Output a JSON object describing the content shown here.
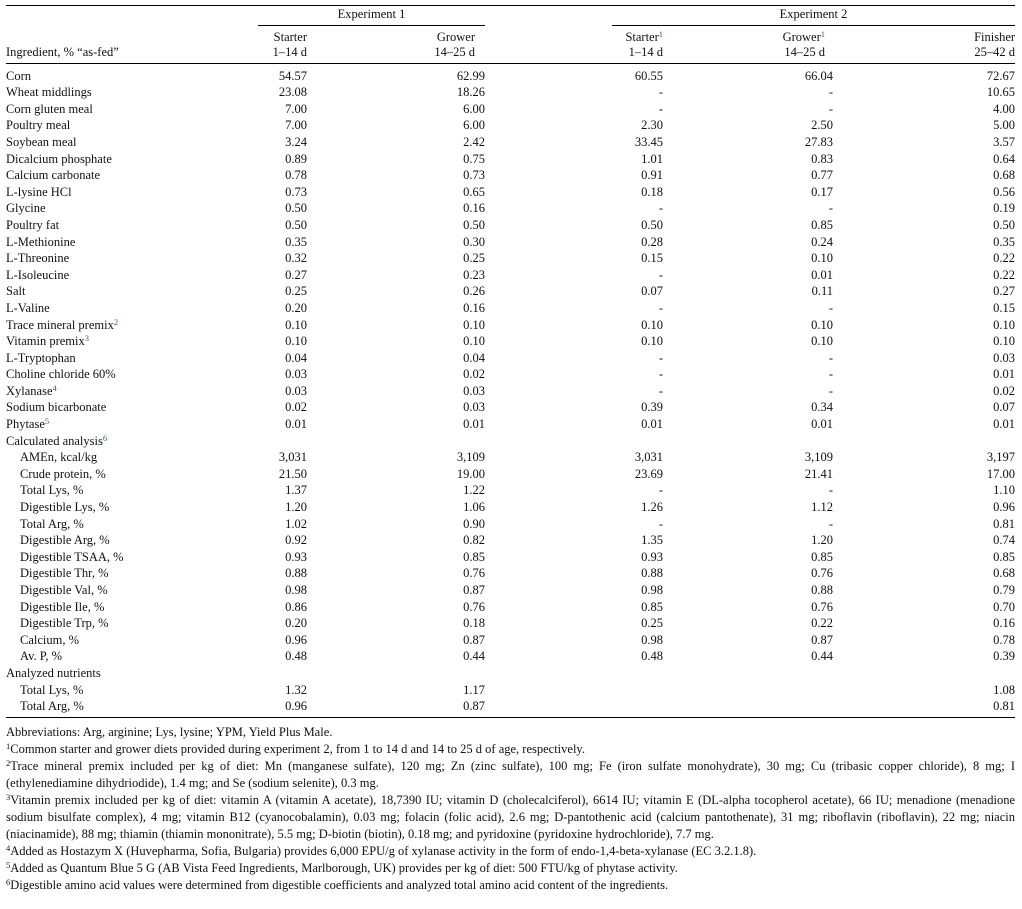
{
  "table": {
    "groups": [
      "Experiment 1",
      "Experiment 2"
    ],
    "header_label": "Ingredient, % “as-fed”",
    "columns": [
      {
        "name": "Starter",
        "period": "1–14 d"
      },
      {
        "name": "Grower",
        "period": "14–25 d"
      },
      {
        "name": "Starter",
        "note": "1",
        "period": "1–14 d"
      },
      {
        "name": "Grower",
        "note": "1",
        "period": "14–25 d"
      },
      {
        "name": "Finisher",
        "period": "25–42 d"
      }
    ],
    "rows": [
      {
        "label": "Corn",
        "values": [
          "54.57",
          "62.99",
          "60.55",
          "66.04",
          "72.67"
        ]
      },
      {
        "label": "Wheat middlings",
        "values": [
          "23.08",
          "18.26",
          "-",
          "-",
          "10.65"
        ]
      },
      {
        "label": "Corn gluten meal",
        "values": [
          "7.00",
          "6.00",
          "-",
          "-",
          "4.00"
        ]
      },
      {
        "label": "Poultry meal",
        "values": [
          "7.00",
          "6.00",
          "2.30",
          "2.50",
          "5.00"
        ]
      },
      {
        "label": "Soybean meal",
        "values": [
          "3.24",
          "2.42",
          "33.45",
          "27.83",
          "3.57"
        ]
      },
      {
        "label": "Dicalcium phosphate",
        "values": [
          "0.89",
          "0.75",
          "1.01",
          "0.83",
          "0.64"
        ]
      },
      {
        "label": "Calcium carbonate",
        "values": [
          "0.78",
          "0.73",
          "0.91",
          "0.77",
          "0.68"
        ]
      },
      {
        "label": "L-lysine HCl",
        "values": [
          "0.73",
          "0.65",
          "0.18",
          "0.17",
          "0.56"
        ]
      },
      {
        "label": "Glycine",
        "values": [
          "0.50",
          "0.16",
          "-",
          "-",
          "0.19"
        ]
      },
      {
        "label": "Poultry fat",
        "values": [
          "0.50",
          "0.50",
          "0.50",
          "0.85",
          "0.50"
        ]
      },
      {
        "label": "L-Methionine",
        "values": [
          "0.35",
          "0.30",
          "0.28",
          "0.24",
          "0.35"
        ]
      },
      {
        "label": "L-Threonine",
        "values": [
          "0.32",
          "0.25",
          "0.15",
          "0.10",
          "0.22"
        ]
      },
      {
        "label": "L-Isoleucine",
        "values": [
          "0.27",
          "0.23",
          "-",
          "0.01",
          "0.22"
        ]
      },
      {
        "label": "Salt",
        "values": [
          "0.25",
          "0.26",
          "0.07",
          "0.11",
          "0.27"
        ]
      },
      {
        "label": "L-Valine",
        "values": [
          "0.20",
          "0.16",
          "-",
          "-",
          "0.15"
        ]
      },
      {
        "label": "Trace mineral premix",
        "note": "2",
        "values": [
          "0.10",
          "0.10",
          "0.10",
          "0.10",
          "0.10"
        ]
      },
      {
        "label": "Vitamin premix",
        "note": "3",
        "values": [
          "0.10",
          "0.10",
          "0.10",
          "0.10",
          "0.10"
        ]
      },
      {
        "label": "L-Tryptophan",
        "values": [
          "0.04",
          "0.04",
          "-",
          "-",
          "0.03"
        ]
      },
      {
        "label": "Choline chloride 60%",
        "values": [
          "0.03",
          "0.02",
          "-",
          "-",
          "0.01"
        ]
      },
      {
        "label": "Xylanase",
        "note": "4",
        "values": [
          "0.03",
          "0.03",
          "-",
          "-",
          "0.02"
        ]
      },
      {
        "label": "Sodium bicarbonate",
        "values": [
          "0.02",
          "0.03",
          "0.39",
          "0.34",
          "0.07"
        ]
      },
      {
        "label": "Phytase",
        "note": "5",
        "values": [
          "0.01",
          "0.01",
          "0.01",
          "0.01",
          "0.01"
        ]
      },
      {
        "label": "Calculated analysis",
        "note": "6"
      },
      {
        "label": "AMEn, kcal/kg",
        "indent": true,
        "values": [
          "3,031",
          "3,109",
          "3,031",
          "3,109",
          "3,197"
        ]
      },
      {
        "label": "Crude protein, %",
        "indent": true,
        "values": [
          "21.50",
          "19.00",
          "23.69",
          "21.41",
          "17.00"
        ]
      },
      {
        "label": "Total Lys, %",
        "indent": true,
        "values": [
          "1.37",
          "1.22",
          "-",
          "-",
          "1.10"
        ]
      },
      {
        "label": "Digestible Lys, %",
        "indent": true,
        "values": [
          "1.20",
          "1.06",
          "1.26",
          "1.12",
          "0.96"
        ]
      },
      {
        "label": "Total Arg, %",
        "indent": true,
        "values": [
          "1.02",
          "0.90",
          "-",
          "-",
          "0.81"
        ]
      },
      {
        "label": "Digestible Arg, %",
        "indent": true,
        "values": [
          "0.92",
          "0.82",
          "1.35",
          "1.20",
          "0.74"
        ]
      },
      {
        "label": "Digestible TSAA, %",
        "indent": true,
        "values": [
          "0.93",
          "0.85",
          "0.93",
          "0.85",
          "0.85"
        ]
      },
      {
        "label": "Digestible Thr, %",
        "indent": true,
        "values": [
          "0.88",
          "0.76",
          "0.88",
          "0.76",
          "0.68"
        ]
      },
      {
        "label": "Digestible Val, %",
        "indent": true,
        "values": [
          "0.98",
          "0.87",
          "0.98",
          "0.88",
          "0.79"
        ]
      },
      {
        "label": "Digestible Ile, %",
        "indent": true,
        "values": [
          "0.86",
          "0.76",
          "0.85",
          "0.76",
          "0.70"
        ]
      },
      {
        "label": "Digestible Trp, %",
        "indent": true,
        "values": [
          "0.20",
          "0.18",
          "0.25",
          "0.22",
          "0.16"
        ]
      },
      {
        "label": "Calcium, %",
        "indent": true,
        "values": [
          "0.96",
          "0.87",
          "0.98",
          "0.87",
          "0.78"
        ]
      },
      {
        "label": "Av. P, %",
        "indent": true,
        "values": [
          "0.48",
          "0.44",
          "0.48",
          "0.44",
          "0.39"
        ]
      },
      {
        "label": "Analyzed nutrients"
      },
      {
        "label": "Total Lys, %",
        "indent": true,
        "values": [
          "1.32",
          "1.17",
          null,
          null,
          "1.08"
        ]
      },
      {
        "label": "Total Arg, %",
        "indent": true,
        "values": [
          "0.96",
          "0.87",
          null,
          null,
          "0.81"
        ]
      }
    ]
  },
  "footnotes": [
    {
      "text": "Abbreviations: Arg, arginine; Lys, lysine; YPM, Yield Plus Male."
    },
    {
      "note": "1",
      "text": "Common starter and grower diets provided during experiment 2, from 1 to 14 d and 14 to 25 d of age, respectively."
    },
    {
      "note": "2",
      "text": "Trace mineral premix included per kg of diet: Mn (manganese sulfate), 120 mg; Zn (zinc sulfate), 100 mg; Fe (iron sulfate monohydrate), 30 mg; Cu (tribasic copper chloride), 8 mg; I (ethylenediamine dihydriodide), 1.4 mg; and Se (sodium selenite), 0.3 mg."
    },
    {
      "note": "3",
      "text": "Vitamin premix included per kg of diet: vitamin A (vitamin A acetate), 18,7390 IU; vitamin D (cholecalciferol), 6614 IU; vitamin E (DL-alpha tocopherol acetate), 66 IU; menadione (menadione sodium bisulfate complex), 4 mg; vitamin B12 (cyanocobalamin), 0.03 mg; folacin (folic acid), 2.6 mg; D-pantothenic acid (calcium pantothenate), 31 mg; riboflavin (riboflavin), 22 mg; niacin (niacinamide), 88 mg; thiamin (thiamin mononitrate), 5.5 mg; D-biotin (biotin), 0.18 mg; and pyridoxine (pyridoxine hydrochloride), 7.7 mg."
    },
    {
      "note": "4",
      "text": "Added as Hostazym X (Huvepharma, Sofia, Bulgaria) provides 6,000 EPU/g of xylanase activity in the form of endo-1,4-beta-xylanase (EC 3.2.1.8)."
    },
    {
      "note": "5",
      "text": "Added as Quantum Blue 5 G (AB Vista Feed Ingredients, Marlborough, UK) provides per kg of diet: 500 FTU/kg of phytase activity."
    },
    {
      "note": "6",
      "text": "Digestible amino acid values were determined from digestible coefficients and analyzed total amino acid content of the ingredients."
    }
  ]
}
